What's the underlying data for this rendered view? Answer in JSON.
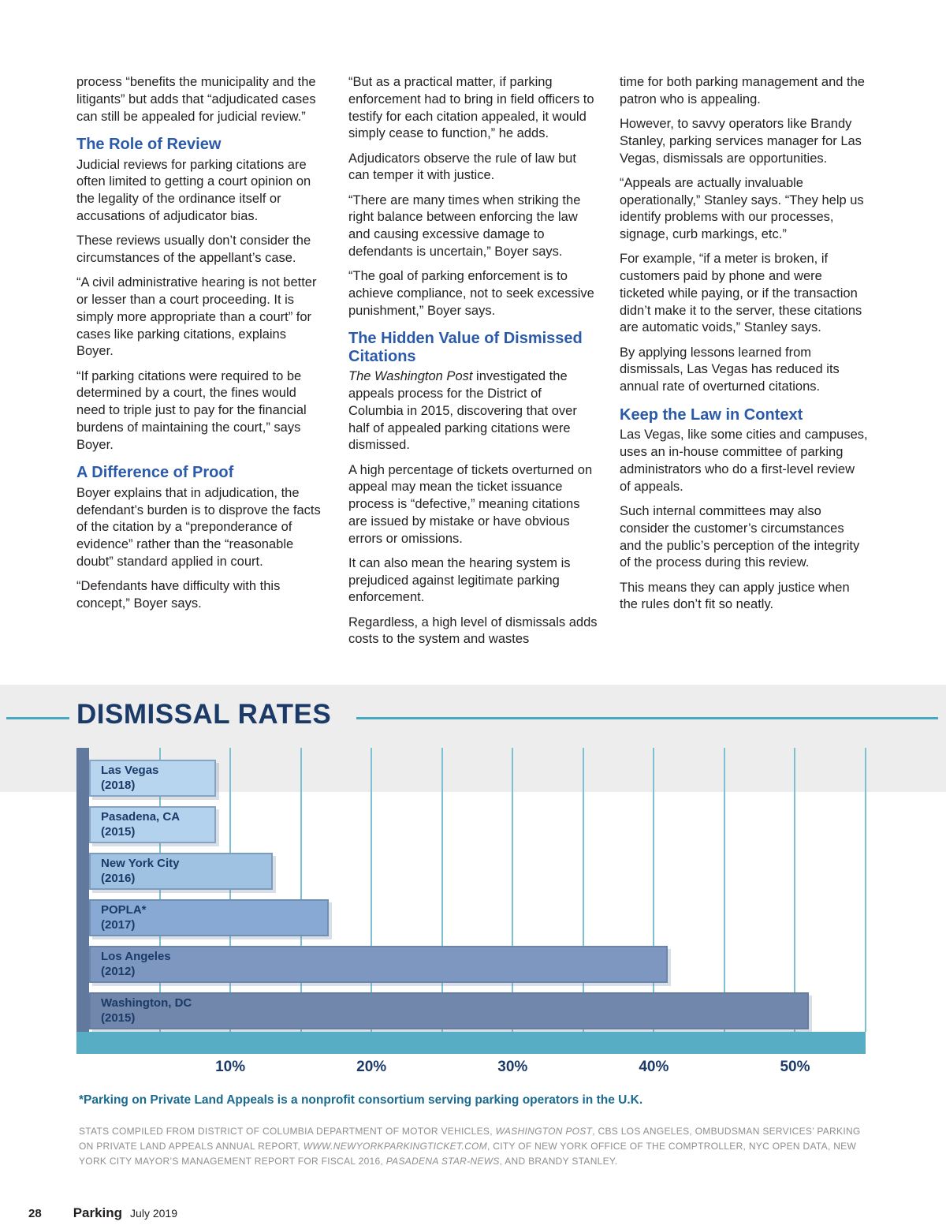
{
  "article": {
    "columns": [
      {
        "blocks": [
          {
            "type": "p",
            "text": "process “benefits the municipality and the litigants” but adds that “adjudicated cases can still be appealed for judicial review.”"
          },
          {
            "type": "h",
            "text": "The Role of Review"
          },
          {
            "type": "p",
            "text": "Judicial reviews for parking citations are often limited to getting a court opinion on the legality of the ordinance itself or accusations of adjudicator bias."
          },
          {
            "type": "p",
            "text": "These reviews usually don’t consider the circumstances of the appellant’s case."
          },
          {
            "type": "p",
            "text": "“A civil administrative hearing is not better or lesser than a court proceeding. It is simply more appropriate than a court” for cases like parking citations, explains Boyer."
          },
          {
            "type": "p",
            "text": "“If parking citations were required to be determined by a court, the fines would need to triple just to pay for the financial burdens of maintaining the court,” says Boyer."
          },
          {
            "type": "h",
            "text": "A Difference of Proof"
          },
          {
            "type": "p",
            "text": "Boyer explains that in adjudication, the defendant’s burden is to disprove the facts of the citation by a “preponderance of evidence” rather than the “reasonable doubt” standard applied in court."
          },
          {
            "type": "p",
            "text": "“Defendants have difficulty with this concept,” Boyer says."
          }
        ]
      },
      {
        "blocks": [
          {
            "type": "p",
            "text": "“But as a practical matter, if parking enforcement had to bring in field officers to testify for each citation appealed, it would simply cease to function,” he adds."
          },
          {
            "type": "p",
            "text": "Adjudicators observe the rule of law but can temper it with justice."
          },
          {
            "type": "p",
            "text": "“There are many times when striking the right balance between enforcing the law and causing excessive damage to defendants is uncertain,” Boyer says."
          },
          {
            "type": "p",
            "text": "“The goal of parking enforcement is to achieve compliance, not to seek excessive punishment,” Boyer says."
          },
          {
            "type": "h",
            "text": "The Hidden Value of Dismissed Citations"
          },
          {
            "type": "p",
            "segments": [
              {
                "text": "The Washington Post",
                "italic": true
              },
              {
                "text": " investigated the appeals process for the District of Columbia in 2015, discovering that over half of appealed parking citations were dismissed."
              }
            ]
          },
          {
            "type": "p",
            "text": "A high percentage of tickets overturned on appeal may mean the ticket issuance process is “defective,” meaning citations are issued by mistake or have obvious errors or omissions."
          },
          {
            "type": "p",
            "text": "It can also mean the hearing system is prejudiced against legitimate parking enforcement."
          },
          {
            "type": "p",
            "text": "Regardless, a high level of dismissals adds costs to the system and wastes"
          }
        ]
      },
      {
        "blocks": [
          {
            "type": "p",
            "text": "time for both parking management and the patron who is appealing."
          },
          {
            "type": "p",
            "text": "However, to savvy operators like Brandy Stanley, parking services manager for Las Vegas, dismissals are opportunities."
          },
          {
            "type": "p",
            "text": "“Appeals are actually invaluable operationally,” Stanley says. “They help us identify problems with our processes, signage, curb markings, etc.”"
          },
          {
            "type": "p",
            "text": "For example, “if a meter is broken, if customers paid by phone and were ticketed while paying, or if the transaction didn’t make it to the server, these citations are automatic voids,” Stanley says."
          },
          {
            "type": "p",
            "text": "By applying lessons learned from dismissals, Las Vegas has reduced its annual rate of overturned citations."
          },
          {
            "type": "h",
            "text": "Keep the Law in Context"
          },
          {
            "type": "p",
            "text": "Las Vegas, like some cities and campuses, uses an in-house committee of parking administrators who do a first-level review of appeals."
          },
          {
            "type": "p",
            "text": "Such internal committees may also consider the customer’s circumstances and the public’s perception of the integrity of the process during this review."
          },
          {
            "type": "p",
            "text": "This means they can apply justice when the rules don’t fit so neatly."
          }
        ]
      }
    ]
  },
  "chart_data": {
    "type": "bar",
    "orientation": "horizontal",
    "title": "DISMISSAL RATES",
    "categories": [
      "Las Vegas (2018)",
      "Pasadena, CA (2015)",
      "New York City (2016)",
      "POPLA* (2017)",
      "Los Angeles (2012)",
      "Washington, DC (2015)"
    ],
    "bar_labels": [
      [
        "Las Vegas",
        "(2018)"
      ],
      [
        "Pasadena, CA",
        "(2015)"
      ],
      [
        "New York City",
        "(2016)"
      ],
      [
        "POPLA*",
        "(2017)"
      ],
      [
        "Los Angeles",
        "(2012)"
      ],
      [
        "Washington, DC",
        "(2015)"
      ]
    ],
    "values": [
      9,
      9,
      13,
      17,
      41,
      51
    ],
    "unit": "%",
    "xlim": [
      0,
      55
    ],
    "xticks": [
      10,
      20,
      30,
      40,
      50
    ],
    "xtick_labels": [
      "10%",
      "20%",
      "30%",
      "40%",
      "50%"
    ],
    "gridline_interval": 5,
    "grid": true,
    "legend": "none",
    "bar_colors": [
      "#b7d5ef",
      "#b2d2ed",
      "#9fc2e3",
      "#87a9d3",
      "#7d97c0",
      "#7187ab"
    ]
  },
  "footnote": "*Parking on Private Land Appeals is a nonprofit consortium serving parking operators in the U.K.",
  "stats_source_segments": [
    {
      "text": "STATS COMPILED FROM DISTRICT OF COLUMBIA DEPARTMENT OF MOTOR VEHICLES, "
    },
    {
      "text": "WASHINGTON POST",
      "italic": true
    },
    {
      "text": ", CBS LOS ANGELES, OMBUDSMAN SERVICES’ PARKING ON PRIVATE LAND APPEALS ANNUAL REPORT, "
    },
    {
      "text": "WWW.NEWYORKPARKINGTICKET.COM",
      "italic": true
    },
    {
      "text": ", CITY OF NEW YORK OFFICE OF THE COMPTROLLER, NYC OPEN DATA, NEW YORK CITY MAYOR’S MANAGEMENT REPORT FOR FISCAL 2016, "
    },
    {
      "text": "PASADENA STAR-NEWS",
      "italic": true
    },
    {
      "text": ", AND BRANDY STANLEY."
    }
  ],
  "footer": {
    "page_number": "28",
    "magazine": "Parking",
    "issue": "July 2019"
  },
  "colors": {
    "heading_blue": "#2b5aa8",
    "title_navy": "#1b3a68",
    "teal_accent": "#45a9c1",
    "y_axis_bar": "#60799c",
    "x_axis_bar": "#57adc4",
    "gridline_teal": "#7cc0d4",
    "body_text": "#231f20",
    "stats_gray": "#8e8e8e",
    "band_gray": "#ededee",
    "footnote_teal": "#1a6b8f"
  }
}
